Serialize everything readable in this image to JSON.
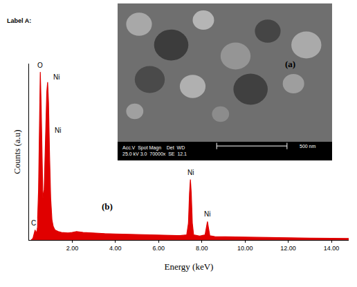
{
  "chart_data": {
    "type": "line",
    "label": "Label A:",
    "panel_label": "(b)",
    "x_label": "Energy (keV)",
    "y_label": "Counts (a.u)",
    "color": "#e00000",
    "grid": false,
    "tick_labels": "x",
    "xlim": [
      0,
      14.8
    ],
    "ylim": [
      0,
      105
    ],
    "xticks": [
      {
        "value": 2,
        "label": "2.00"
      },
      {
        "value": 4,
        "label": "4.00"
      },
      {
        "value": 6,
        "label": "6.00"
      },
      {
        "value": 8,
        "label": "8.00"
      },
      {
        "value": 10,
        "label": "10.00"
      },
      {
        "value": 12,
        "label": "12.00"
      },
      {
        "value": 14,
        "label": "14.00"
      }
    ],
    "x": [
      0.1,
      0.18,
      0.24,
      0.28,
      0.32,
      0.38,
      0.44,
      0.48,
      0.52,
      0.56,
      0.6,
      0.64,
      0.7,
      0.76,
      0.82,
      0.86,
      0.9,
      0.95,
      1.0,
      1.06,
      1.12,
      1.2,
      1.35,
      1.5,
      1.8,
      2.0,
      2.2,
      2.5,
      3.0,
      3.5,
      4.0,
      4.5,
      5.0,
      5.5,
      6.0,
      6.5,
      7.0,
      7.3,
      7.38,
      7.43,
      7.47,
      7.51,
      7.56,
      7.62,
      7.9,
      8.15,
      8.21,
      8.26,
      8.31,
      8.37,
      8.6,
      9.0,
      10.0,
      11.0,
      12.0,
      13.0,
      14.0,
      14.8
    ],
    "values": [
      0,
      1,
      4,
      6,
      4,
      6,
      30,
      75,
      100,
      80,
      45,
      25,
      30,
      60,
      88,
      94,
      82,
      50,
      25,
      12,
      8,
      6,
      5,
      4.5,
      4.2,
      4.5,
      5,
      4.5,
      4,
      3.8,
      3.6,
      3.4,
      3.2,
      3.0,
      2.8,
      2.7,
      2.6,
      3,
      10,
      28,
      36,
      28,
      10,
      3,
      2.3,
      3,
      7,
      11,
      7,
      2.5,
      2,
      1.9,
      1.7,
      1.5,
      1.3,
      1.1,
      1.0,
      0.9
    ],
    "peak_labels": [
      {
        "text": "O",
        "x": 0.52,
        "y": 100
      },
      {
        "text": "Ni",
        "x": 0.86,
        "y": 94
      },
      {
        "text": "Ni",
        "x": 0.86,
        "y": 94
      },
      {
        "text": "Ni",
        "x": 7.47,
        "y": 36
      },
      {
        "text": "Ni",
        "x": 8.26,
        "y": 11
      },
      {
        "text": "C",
        "x": 0.28,
        "y": 6
      }
    ]
  },
  "inset": {
    "label": "(a)",
    "info_header": "Acc.V  Spot Magn    Det  WD",
    "info_values": "25.0 kV 3.0  70000x  SE  12.1",
    "scale_bar": "500 nm"
  }
}
